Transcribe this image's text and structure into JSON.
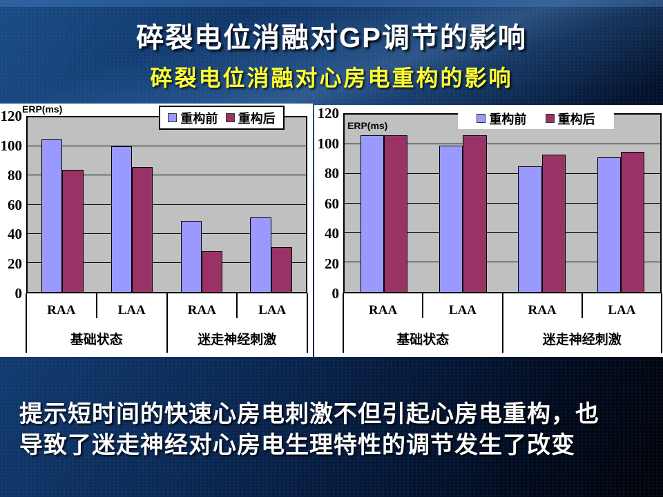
{
  "slide": {
    "title": "碎裂电位消融对GP调节的影响",
    "subtitle": "碎裂电位消融对心房电重构的影响",
    "footer_line1": "提示短时间的快速心房电刺激不但引起心房电重构，也",
    "footer_line2": "导致了迷走神经对心房电生理特性的调节发生了改变"
  },
  "colors": {
    "slide_background": "#0A2448",
    "title_text": "#FFFFFF",
    "subtitle_text": "#FFFF33",
    "footer_text": "#FFFFFF",
    "chart_background": "#FFFFFF",
    "plot_background": "#C0C0C0",
    "series_before": "#9999FF",
    "series_after": "#993366"
  },
  "chart_data": [
    {
      "type": "bar",
      "position": "left",
      "title": "",
      "xlabel": "",
      "ylabel": "ERP(ms)",
      "ylim": [
        0,
        120
      ],
      "yticks": [
        0,
        20,
        40,
        60,
        80,
        100,
        120
      ],
      "grid": true,
      "legend_position": "top-right",
      "categories": [
        "RAA",
        "LAA",
        "RAA",
        "LAA"
      ],
      "group_labels": [
        "基础状态",
        "迷走神经刺激"
      ],
      "series": [
        {
          "name": "重构前",
          "color": "#9999FF",
          "values": [
            105,
            100,
            49,
            51
          ]
        },
        {
          "name": "重构后",
          "color": "#993366",
          "values": [
            84,
            86,
            28,
            31
          ]
        }
      ]
    },
    {
      "type": "bar",
      "position": "right",
      "title": "",
      "xlabel": "",
      "ylabel": "ERP(ms)",
      "ylim": [
        0,
        120
      ],
      "yticks": [
        0,
        20,
        40,
        60,
        80,
        100,
        120
      ],
      "grid": true,
      "legend_position": "top",
      "categories": [
        "RAA",
        "LAA",
        "RAA",
        "LAA"
      ],
      "group_labels": [
        "基础状态",
        "迷走神经刺激"
      ],
      "series": [
        {
          "name": "重构前",
          "color": "#9999FF",
          "values": [
            106,
            99,
            85,
            91
          ]
        },
        {
          "name": "重构后",
          "color": "#993366",
          "values": [
            106,
            106,
            93,
            95
          ]
        }
      ]
    }
  ]
}
